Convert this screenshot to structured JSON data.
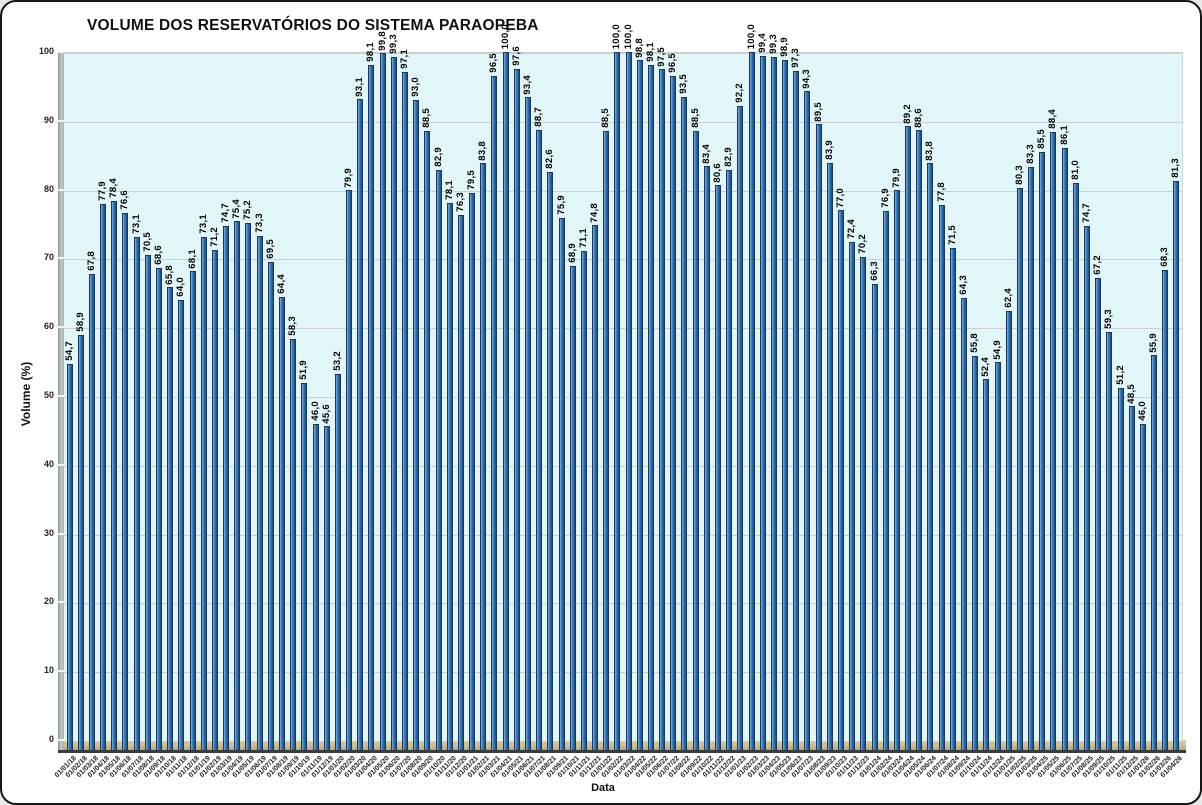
{
  "chart_data": {
    "type": "bar",
    "title": "VOLUME DOS RESERVATÓRIOS DO SISTEMA PARAOPEBA",
    "xlabel": "Data",
    "ylabel": "Volume (%)",
    "ylim": [
      0,
      100
    ],
    "yticks": [
      0,
      10,
      20,
      30,
      40,
      50,
      60,
      70,
      80,
      90,
      100
    ],
    "grid": true,
    "legend": false,
    "colors": {
      "bar": "#2f6fae",
      "bar_highlight": "#7fb0d8",
      "bar_shadow": "#1d4e7d",
      "bar_outline": "#17375c",
      "plot_background": "#e2f5f8",
      "floor": "#c9be97",
      "wall": "#a9aeb3",
      "gridline": "#c9ced1",
      "text": "#111111"
    },
    "categories": [
      "01/01/18",
      "01/02/18",
      "01/03/18",
      "01/04/18",
      "01/05/18",
      "01/06/18",
      "01/07/18",
      "01/08/18",
      "01/09/18",
      "01/10/18",
      "01/11/18",
      "01/12/18",
      "01/01/19",
      "01/02/19",
      "01/03/19",
      "01/04/19",
      "01/05/19",
      "01/06/19",
      "01/07/19",
      "01/08/19",
      "01/09/19",
      "01/10/19",
      "01/11/19",
      "01/12/19",
      "01/01/20",
      "01/02/20",
      "01/03/20",
      "01/04/20",
      "01/05/20",
      "01/06/20",
      "01/07/20",
      "01/08/20",
      "01/09/20",
      "01/10/20",
      "01/11/20",
      "01/12/20",
      "01/01/21",
      "01/02/21",
      "01/03/21",
      "01/04/21",
      "01/05/21",
      "01/06/21",
      "01/07/21",
      "01/08/21",
      "01/09/21",
      "01/10/21",
      "01/11/21",
      "01/12/21",
      "01/01/22",
      "01/02/22",
      "01/03/22",
      "01/04/22",
      "01/05/22",
      "01/06/22",
      "01/07/22",
      "01/08/22",
      "01/09/22",
      "01/10/22",
      "01/11/22",
      "01/12/22",
      "01/01/23",
      "01/02/23",
      "01/03/23",
      "01/04/23",
      "01/05/23",
      "01/06/23",
      "01/07/23",
      "01/08/23",
      "01/09/23",
      "01/10/23",
      "01/11/23",
      "01/12/23",
      "01/01/24",
      "01/02/24",
      "01/03/24",
      "01/04/24",
      "01/05/24",
      "01/06/24",
      "01/07/24",
      "01/08/24",
      "01/09/24",
      "01/10/24",
      "01/11/24",
      "01/12/24",
      "01/01/25",
      "01/02/25",
      "01/03/25",
      "01/04/25",
      "01/05/25",
      "01/06/25",
      "01/07/25",
      "01/08/25",
      "01/09/25",
      "01/10/25",
      "01/11/25",
      "01/12/25",
      "01/01/26",
      "01/02/26",
      "01/03/26",
      "01/04/26"
    ],
    "values": [
      54.7,
      58.9,
      67.8,
      77.9,
      78.4,
      76.6,
      73.1,
      70.5,
      68.6,
      65.8,
      64.0,
      68.1,
      73.1,
      71.2,
      74.7,
      75.4,
      75.2,
      73.3,
      69.5,
      64.4,
      58.3,
      51.9,
      46.0,
      45.6,
      53.2,
      79.9,
      93.1,
      98.1,
      99.8,
      99.3,
      97.1,
      93.0,
      88.5,
      82.9,
      78.1,
      76.3,
      79.5,
      83.8,
      96.5,
      100.0,
      97.6,
      93.4,
      88.7,
      82.6,
      75.9,
      68.9,
      71.1,
      74.8,
      88.5,
      100.0,
      100.0,
      98.8,
      98.1,
      97.5,
      96.5,
      93.5,
      88.5,
      83.4,
      80.6,
      82.9,
      92.2,
      100.0,
      99.4,
      99.3,
      98.9,
      97.3,
      94.3,
      89.5,
      83.9,
      77.0,
      72.4,
      70.2,
      66.3,
      76.9,
      79.9,
      89.2,
      88.6,
      83.8,
      77.8,
      71.5,
      64.3,
      55.8,
      52.4,
      54.9,
      62.4,
      80.3,
      83.3,
      85.5,
      88.4,
      86.1,
      81.0,
      74.7,
      67.2,
      59.3,
      51.2,
      48.5,
      46.0,
      55.9,
      68.3,
      81.3
    ],
    "value_labels": [
      "54,7",
      "58,9",
      "67,8",
      "77,9",
      "78,4",
      "76,6",
      "73,1",
      "70,5",
      "68,6",
      "65,8",
      "64,0",
      "68,1",
      "73,1",
      "71,2",
      "74,7",
      "75,4",
      "75,2",
      "73,3",
      "69,5",
      "64,4",
      "58,3",
      "51,9",
      "46,0",
      "45,6",
      "53,2",
      "79,9",
      "93,1",
      "98,1",
      "99,8",
      "99,3",
      "97,1",
      "93,0",
      "88,5",
      "82,9",
      "78,1",
      "76,3",
      "79,5",
      "83,8",
      "96,5",
      "100,0",
      "97,6",
      "93,4",
      "88,7",
      "82,6",
      "75,9",
      "68,9",
      "71,1",
      "74,8",
      "88,5",
      "100,0",
      "100,0",
      "98,8",
      "98,1",
      "97,5",
      "96,5",
      "93,5",
      "88,5",
      "83,4",
      "80,6",
      "82,9",
      "92,2",
      "100,0",
      "99,4",
      "99,3",
      "98,9",
      "97,3",
      "94,3",
      "89,5",
      "83,9",
      "77,0",
      "72,4",
      "70,2",
      "66,3",
      "76,9",
      "79,9",
      "89,2",
      "88,6",
      "83,8",
      "77,8",
      "71,5",
      "64,3",
      "55,8",
      "52,4",
      "54,9",
      "62,4",
      "80,3",
      "83,3",
      "85,5",
      "88,4",
      "86,1",
      "81,0",
      "74,7",
      "67,2",
      "59,3",
      "51,2",
      "48,5",
      "46,0",
      "55,9",
      "68,3",
      "81,3"
    ]
  }
}
